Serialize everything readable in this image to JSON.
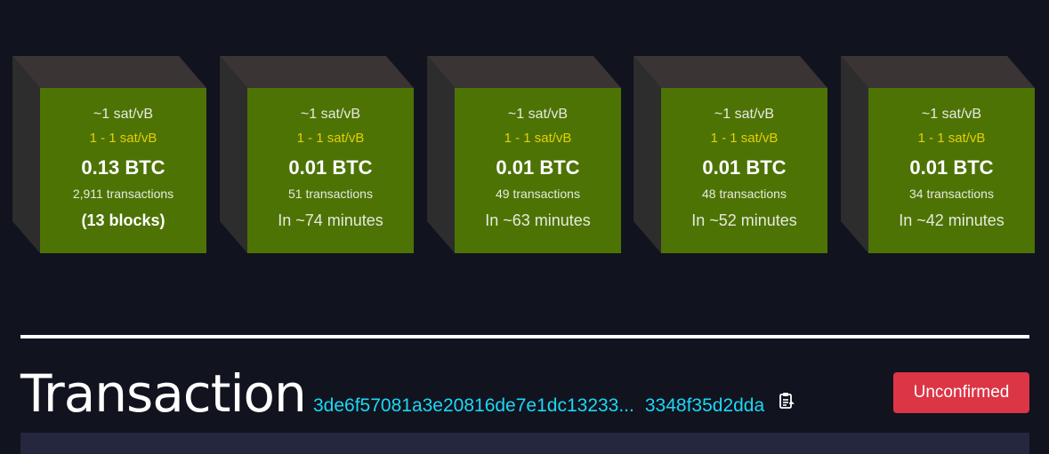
{
  "mempool_blocks": [
    {
      "fee_median": "~1 sat/vB",
      "fee_range": "1 - 1 sat/vB",
      "size": "0.13 BTC",
      "tx_count": "2,911 transactions",
      "eta": "(13 blocks)"
    },
    {
      "fee_median": "~1 sat/vB",
      "fee_range": "1 - 1 sat/vB",
      "size": "0.01 BTC",
      "tx_count": "51 transactions",
      "eta": "In ~74 minutes"
    },
    {
      "fee_median": "~1 sat/vB",
      "fee_range": "1 - 1 sat/vB",
      "size": "0.01 BTC",
      "tx_count": "49 transactions",
      "eta": "In ~63 minutes"
    },
    {
      "fee_median": "~1 sat/vB",
      "fee_range": "1 - 1 sat/vB",
      "size": "0.01 BTC",
      "tx_count": "48 transactions",
      "eta": "In ~52 minutes"
    },
    {
      "fee_median": "~1 sat/vB",
      "fee_range": "1 - 1 sat/vB",
      "size": "0.01 BTC",
      "tx_count": "34 transactions",
      "eta": "In ~42 minutes"
    }
  ],
  "transaction": {
    "title": "Transaction",
    "txid_start": "3de6f57081a3e20816de7e1dc13233...",
    "txid_end": "3348f35d2dda",
    "copy_icon": "clipboard-copy-icon",
    "status": "Unconfirmed"
  },
  "colors": {
    "background": "#11131f",
    "block_face": "#4d7305",
    "block_side": "#2d2d2d",
    "block_top": "#3a3434",
    "fee_range": "#e6d000",
    "txid_link": "#1bd8f4",
    "status_unconfirmed": "#dc3545",
    "panel": "#24273e"
  }
}
